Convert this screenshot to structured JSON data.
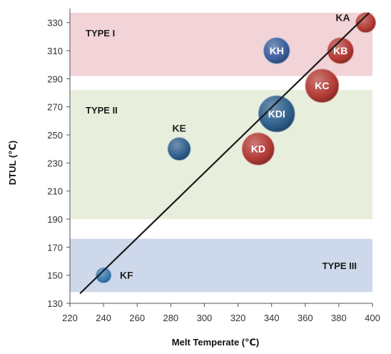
{
  "chart_data": {
    "type": "scatter",
    "subtype": "bubble",
    "xlabel": "Melt Temperate (℃)",
    "ylabel": "DTUL (℃)",
    "xlim": [
      220,
      400
    ],
    "ylim": [
      130,
      340
    ],
    "xticks": [
      "220",
      "240",
      "260",
      "280",
      "300",
      "320",
      "340",
      "360",
      "380",
      "400"
    ],
    "yticks": [
      "130",
      "150",
      "170",
      "190",
      "210",
      "230",
      "250",
      "270",
      "290",
      "310",
      "330"
    ],
    "grid": false,
    "bands": [
      {
        "label": "TYPE I",
        "y_range": [
          292,
          337
        ],
        "color": "#f2d3d7",
        "label_position": "top-left"
      },
      {
        "label": "TYPE II",
        "y_range": [
          190,
          282
        ],
        "color": "#e7efdc",
        "label_position": "top-left"
      },
      {
        "label": "TYPE III",
        "y_range": [
          138,
          176
        ],
        "color": "#cdd8ea",
        "label_position": "right"
      }
    ],
    "points": [
      {
        "label": "KA",
        "x": 396,
        "y": 330,
        "size": 1,
        "color": "#b23a34",
        "label_color": "#222222",
        "label_position": "left"
      },
      {
        "label": "KB",
        "x": 381,
        "y": 310,
        "size": 1.7,
        "color": "#b23a34",
        "label_color": "#ffffff",
        "label_position": "inside"
      },
      {
        "label": "KC",
        "x": 370,
        "y": 285,
        "size": 2.8,
        "color": "#b23a34",
        "label_color": "#ffffff",
        "label_position": "inside"
      },
      {
        "label": "KD",
        "x": 332,
        "y": 240,
        "size": 2.6,
        "color": "#b23a34",
        "label_color": "#ffffff",
        "label_position": "inside"
      },
      {
        "label": "KDI",
        "x": 343,
        "y": 265,
        "size": 3.3,
        "color": "#2e5f8c",
        "label_color": "#ffffff",
        "label_position": "inside"
      },
      {
        "label": "KH",
        "x": 343,
        "y": 310,
        "size": 1.7,
        "color": "#3c5e9a",
        "label_color": "#ffffff",
        "label_position": "inside"
      },
      {
        "label": "KE",
        "x": 285,
        "y": 240,
        "size": 1.3,
        "color": "#2e5f8c",
        "label_color": "#222222",
        "label_position": "above"
      },
      {
        "label": "KF",
        "x": 240,
        "y": 150,
        "size": 0.6,
        "color": "#3a7ab0",
        "label_color": "#222222",
        "label_position": "right"
      }
    ],
    "trendline": {
      "x": [
        226,
        398
      ],
      "y": [
        137,
        337
      ],
      "color": "#1a1a1a"
    }
  }
}
